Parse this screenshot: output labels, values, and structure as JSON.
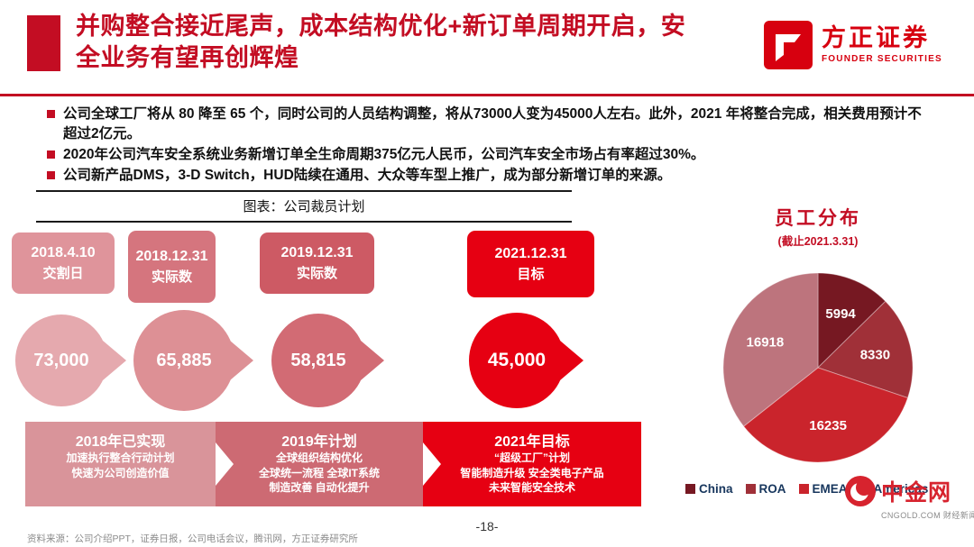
{
  "slide": {
    "title": "并购整合接近尾声，成本结构优化+新订单周期开启，安全业务有望再创辉煌",
    "page_number": "-18-",
    "source": "资料来源：公司介绍PPT，证券日报，公司电话会议，腾讯网，方正证券研究所"
  },
  "brand": {
    "name": "方正证券",
    "name_en": "FOUNDER SECURITIES",
    "accent_color": "#c30d23",
    "logo_red": "#d7000f"
  },
  "bullets": [
    "公司全球工厂将从 80 降至 65 个，同时公司的人员结构调整，将从73000人变为45000人左右。此外，2021 年将整合完成，相关费用预计不超过2亿元。",
    "2020年公司汽车安全系统业务新增订单全生命周期375亿元人民币，公司汽车安全市场占有率超过30%。",
    "公司新产品DMS，3-D Switch，HUD陆续在通用、大众等车型上推广，成为部分新增订单的来源。"
  ],
  "figure": {
    "caption": "图表：公司裁员计划",
    "milestones": [
      {
        "date": "2018.4.10",
        "label": "交割日",
        "value": "73,000",
        "box_color": "#df949b",
        "node_color": "#e5a9ae"
      },
      {
        "date": "2018.12.31",
        "label": "实际数",
        "value": "65,885",
        "box_color": "#d5757e",
        "node_color": "#dd9095"
      },
      {
        "date": "2019.12.31",
        "label": "实际数",
        "value": "58,815",
        "box_color": "#cd5a64",
        "node_color": "#d26b74"
      },
      {
        "date": "2021.12.31",
        "label": "目标",
        "value": "45,000",
        "box_color": "#e60012",
        "node_color": "#e60012"
      }
    ],
    "phases": [
      {
        "title": "2018年已实现",
        "color": "#d9949a",
        "lines": [
          "加速执行整合行动计划",
          "快速为公司创造价值"
        ]
      },
      {
        "title": "2019年计划",
        "color": "#cd6a73",
        "lines": [
          "全球组织结构优化",
          "全球统一流程 全球IT系统",
          "制造改善 自动化提升"
        ]
      },
      {
        "title": "2021年目标",
        "color": "#e60012",
        "lines": [
          "“超级工厂”计划",
          "智能制造升级 安全类电子产品",
          "未来智能安全技术"
        ]
      }
    ]
  },
  "chart_data": {
    "type": "pie",
    "title": "员工分布",
    "subtitle": "(截止2021.3.31)",
    "labels": [
      "China",
      "ROA",
      "EMEA",
      "Americas"
    ],
    "values": [
      5994,
      8330,
      16235,
      16918
    ],
    "colors": [
      "#761822",
      "#a03038",
      "#ca242c",
      "#bd747d"
    ],
    "start_angle_deg": 0,
    "direction": "clockwise",
    "legend_position": "bottom",
    "legend_text_color": "#17365d"
  },
  "watermark": {
    "name": "中金网",
    "domain": "CNGOLD.COM",
    "tagline": "财经新闻资讯"
  }
}
